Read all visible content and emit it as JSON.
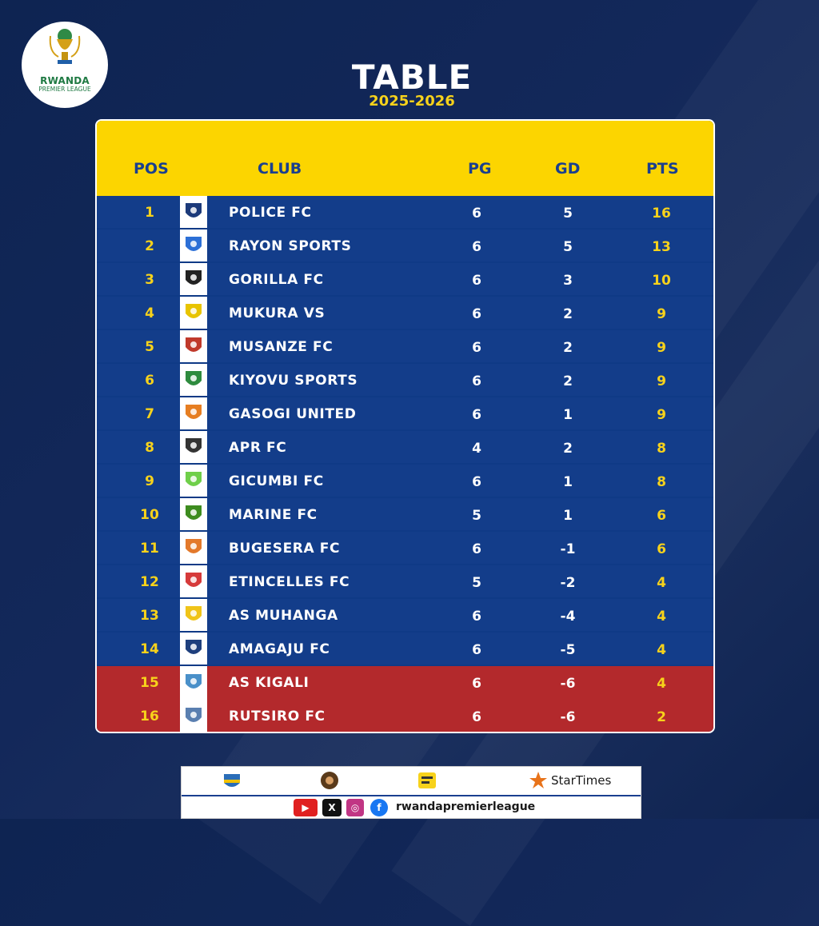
{
  "league": {
    "logo_line1": "RWANDA",
    "logo_line2": "PREMIER LEAGUE"
  },
  "header": {
    "title": "TABLE",
    "season": "2025-2026"
  },
  "table": {
    "columns": {
      "pos": "POS",
      "club": "CLUB",
      "pg": "PG",
      "gd": "GD",
      "pts": "PTS"
    },
    "rows": [
      {
        "pos": "1",
        "club": "POLICE FC",
        "pg": "6",
        "gd": "5",
        "pts": "16",
        "badge_color": "#1c3a7a"
      },
      {
        "pos": "2",
        "club": "RAYON SPORTS",
        "pg": "6",
        "gd": "5",
        "pts": "13",
        "badge_color": "#2c6fd6"
      },
      {
        "pos": "3",
        "club": "GORILLA FC",
        "pg": "6",
        "gd": "3",
        "pts": "10",
        "badge_color": "#222222"
      },
      {
        "pos": "4",
        "club": "MUKURA VS",
        "pg": "6",
        "gd": "2",
        "pts": "9",
        "badge_color": "#e8c400"
      },
      {
        "pos": "5",
        "club": "MUSANZE FC",
        "pg": "6",
        "gd": "2",
        "pts": "9",
        "badge_color": "#c0392b"
      },
      {
        "pos": "6",
        "club": "KIYOVU SPORTS",
        "pg": "6",
        "gd": "2",
        "pts": "9",
        "badge_color": "#2e8b3e"
      },
      {
        "pos": "7",
        "club": "GASOGI UNITED",
        "pg": "6",
        "gd": "1",
        "pts": "9",
        "badge_color": "#e67e22"
      },
      {
        "pos": "8",
        "club": "APR FC",
        "pg": "4",
        "gd": "2",
        "pts": "8",
        "badge_color": "#333333"
      },
      {
        "pos": "9",
        "club": "GICUMBI FC",
        "pg": "6",
        "gd": "1",
        "pts": "8",
        "badge_color": "#6fcf4a"
      },
      {
        "pos": "10",
        "club": "MARINE FC",
        "pg": "5",
        "gd": "1",
        "pts": "6",
        "badge_color": "#3d8c1f"
      },
      {
        "pos": "11",
        "club": "BUGESERA FC",
        "pg": "6",
        "gd": "-1",
        "pts": "6",
        "badge_color": "#e3792b"
      },
      {
        "pos": "12",
        "club": "ETINCELLES FC",
        "pg": "5",
        "gd": "-2",
        "pts": "4",
        "badge_color": "#d63a3a"
      },
      {
        "pos": "13",
        "club": "AS MUHANGA",
        "pg": "6",
        "gd": "-4",
        "pts": "4",
        "badge_color": "#f0c419"
      },
      {
        "pos": "14",
        "club": "AMAGAJU FC",
        "pg": "6",
        "gd": "-5",
        "pts": "4",
        "badge_color": "#1e3f7d"
      },
      {
        "pos": "15",
        "club": "AS KIGALI",
        "pg": "6",
        "gd": "-6",
        "pts": "4",
        "badge_color": "#4a90c9",
        "relegation": true
      },
      {
        "pos": "16",
        "club": "RUTSIRO FC",
        "pg": "6",
        "gd": "-6",
        "pts": "2",
        "badge_color": "#5a7fb0",
        "relegation": true
      }
    ]
  },
  "footer": {
    "sponsor_4": "StarTimes",
    "social_handle": "rwandapremierleague",
    "social_icons": [
      "youtube-icon",
      "x-icon",
      "instagram-icon",
      "facebook-icon"
    ]
  }
}
